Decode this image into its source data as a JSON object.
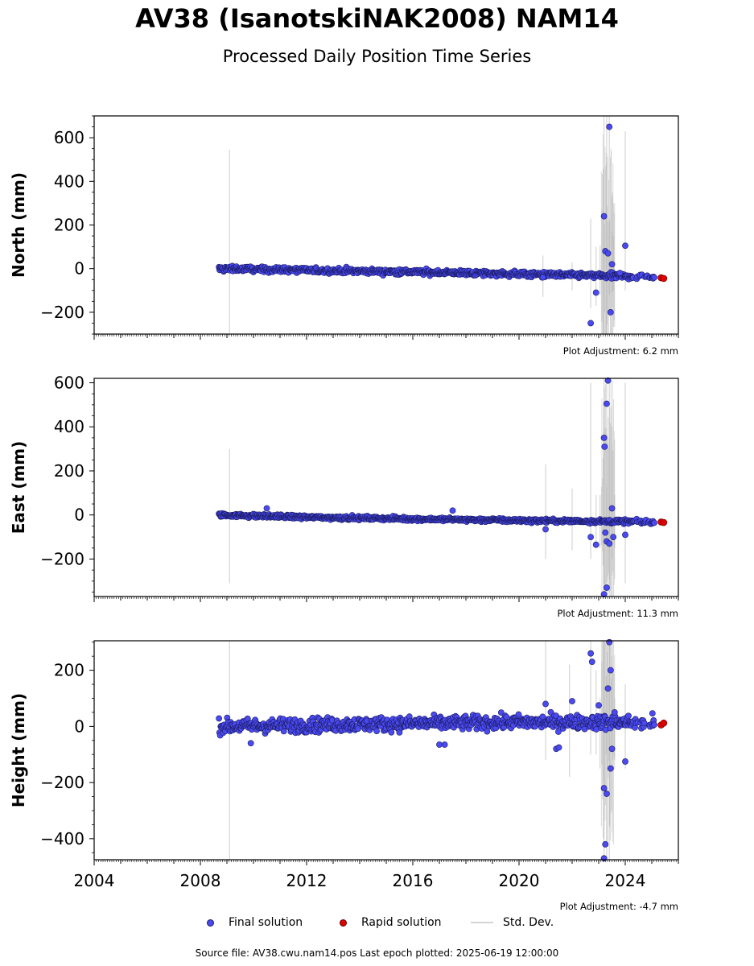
{
  "header": {
    "title": "AV38 (IsanotskiNAK2008) NAM14",
    "subtitle": "Processed Daily Position Time Series"
  },
  "legend": {
    "final": "Final solution",
    "rapid": "Rapid solution",
    "std": "Std. Dev."
  },
  "footer": {
    "source": "Source file: AV38.cwu.nam14.pos  Last epoch plotted: 2025-06-19 12:00:00"
  },
  "colors": {
    "final": "#4a4af0",
    "final_edge": "#1a1a60",
    "rapid": "#e00000",
    "std": "#c8c8c8"
  },
  "chart_data": [
    {
      "type": "scatter",
      "ylabel": "North (mm)",
      "adjustment": "Plot Adjustment: 6.2 mm",
      "xlim": [
        2004.0,
        2026.0
      ],
      "ylim": [
        -300,
        700
      ],
      "yticks": [
        -200,
        0,
        200,
        400,
        600
      ],
      "x_tick_labels": [],
      "trend": [
        [
          2008.7,
          0
        ],
        [
          2012.0,
          -8
        ],
        [
          2016.0,
          -15
        ],
        [
          2020.0,
          -25
        ],
        [
          2024.0,
          -35
        ],
        [
          2025.3,
          -40
        ]
      ],
      "noise": 9,
      "outliers": [
        [
          2020.9,
          -40
        ],
        [
          2022.7,
          -250
        ],
        [
          2022.9,
          -110
        ],
        [
          2023.2,
          240
        ],
        [
          2023.25,
          80
        ],
        [
          2023.35,
          70
        ],
        [
          2023.4,
          650
        ],
        [
          2023.45,
          -200
        ],
        [
          2023.5,
          20
        ],
        [
          2023.8,
          -20
        ],
        [
          2024.0,
          105
        ]
      ],
      "rapid": [
        [
          2025.35,
          -42
        ],
        [
          2025.45,
          -45
        ]
      ],
      "std_bars": [
        [
          2009.1,
          545,
          -295
        ],
        [
          2020.9,
          60,
          -130
        ],
        [
          2022.0,
          30,
          -100
        ],
        [
          2022.7,
          230,
          -180
        ],
        [
          2022.9,
          100,
          -170
        ],
        [
          2023.05,
          105,
          -120
        ],
        [
          2023.2,
          700,
          -300
        ],
        [
          2023.3,
          700,
          -300
        ],
        [
          2023.4,
          700,
          -120
        ],
        [
          2023.5,
          330,
          -110
        ],
        [
          2023.55,
          150,
          -100
        ],
        [
          2024.0,
          630,
          -100
        ]
      ]
    },
    {
      "type": "scatter",
      "ylabel": "East (mm)",
      "adjustment": "Plot Adjustment: 11.3 mm",
      "xlim": [
        2004.0,
        2026.0
      ],
      "ylim": [
        -370,
        620
      ],
      "yticks": [
        -200,
        0,
        200,
        400,
        600
      ],
      "x_tick_labels": [],
      "trend": [
        [
          2008.7,
          0
        ],
        [
          2012.0,
          -10
        ],
        [
          2016.0,
          -18
        ],
        [
          2020.0,
          -25
        ],
        [
          2024.0,
          -30
        ],
        [
          2025.3,
          -32
        ]
      ],
      "noise": 6,
      "outliers": [
        [
          2010.5,
          30
        ],
        [
          2017.5,
          20
        ],
        [
          2021.0,
          -65
        ],
        [
          2022.7,
          -100
        ],
        [
          2022.9,
          -135
        ],
        [
          2023.2,
          350
        ],
        [
          2023.22,
          310
        ],
        [
          2023.3,
          505
        ],
        [
          2023.35,
          610
        ],
        [
          2023.25,
          -80
        ],
        [
          2023.3,
          -120
        ],
        [
          2023.4,
          -130
        ],
        [
          2023.5,
          30
        ],
        [
          2023.55,
          -100
        ],
        [
          2023.3,
          -330
        ],
        [
          2023.2,
          -360
        ],
        [
          2024.0,
          -90
        ]
      ],
      "rapid": [
        [
          2025.35,
          -32
        ],
        [
          2025.45,
          -34
        ]
      ],
      "std_bars": [
        [
          2009.1,
          300,
          -310
        ],
        [
          2021.0,
          230,
          -200
        ],
        [
          2022.0,
          120,
          -160
        ],
        [
          2022.7,
          600,
          -200
        ],
        [
          2022.9,
          90,
          -150
        ],
        [
          2023.05,
          90,
          -150
        ],
        [
          2023.2,
          620,
          -370
        ],
        [
          2023.3,
          620,
          -370
        ],
        [
          2023.4,
          620,
          -350
        ],
        [
          2023.5,
          400,
          -200
        ],
        [
          2023.6,
          90,
          -150
        ],
        [
          2024.0,
          600,
          -310
        ]
      ]
    },
    {
      "type": "scatter",
      "ylabel": "Height (mm)",
      "adjustment": "Plot Adjustment: -4.7 mm",
      "xlim": [
        2004.0,
        2026.0
      ],
      "ylim": [
        -475,
        305
      ],
      "yticks": [
        -400,
        -200,
        0,
        200
      ],
      "x_tick_labels": [
        "2004",
        "2008",
        "2012",
        "2016",
        "2020",
        "2024"
      ],
      "trend": [
        [
          2008.7,
          0
        ],
        [
          2012.0,
          5
        ],
        [
          2016.0,
          10
        ],
        [
          2020.0,
          15
        ],
        [
          2024.0,
          15
        ],
        [
          2025.3,
          10
        ]
      ],
      "noise": 18,
      "outliers": [
        [
          2009.9,
          -60
        ],
        [
          2017.0,
          -65
        ],
        [
          2017.2,
          -65
        ],
        [
          2021.0,
          80
        ],
        [
          2021.4,
          -80
        ],
        [
          2021.5,
          -75
        ],
        [
          2022.0,
          90
        ],
        [
          2022.7,
          260
        ],
        [
          2022.75,
          230
        ],
        [
          2023.0,
          75
        ],
        [
          2023.2,
          -220
        ],
        [
          2023.25,
          -420
        ],
        [
          2023.3,
          -240
        ],
        [
          2023.35,
          135
        ],
        [
          2023.4,
          300
        ],
        [
          2023.45,
          200
        ],
        [
          2023.45,
          -150
        ],
        [
          2023.2,
          -470
        ],
        [
          2023.5,
          -80
        ],
        [
          2023.6,
          50
        ],
        [
          2024.0,
          -125
        ]
      ],
      "rapid": [
        [
          2025.35,
          5
        ],
        [
          2025.45,
          12
        ]
      ],
      "std_bars": [
        [
          2009.1,
          305,
          -475
        ],
        [
          2021.0,
          305,
          -120
        ],
        [
          2021.9,
          220,
          -180
        ],
        [
          2022.7,
          305,
          -100
        ],
        [
          2022.9,
          200,
          -100
        ],
        [
          2023.05,
          100,
          -150
        ],
        [
          2023.2,
          305,
          -475
        ],
        [
          2023.3,
          305,
          -475
        ],
        [
          2023.4,
          305,
          -475
        ],
        [
          2023.5,
          250,
          -300
        ],
        [
          2023.6,
          100,
          -120
        ],
        [
          2024.0,
          150,
          -150
        ]
      ]
    }
  ]
}
